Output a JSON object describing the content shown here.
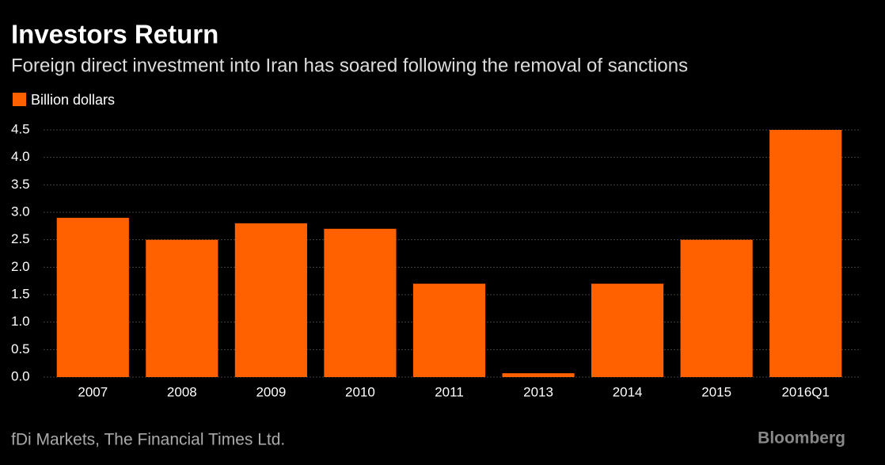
{
  "chart_data": {
    "type": "bar",
    "title": "Investors Return",
    "subtitle": "Foreign direct investment into Iran has soared following the removal of sanctions",
    "categories": [
      "2007",
      "2008",
      "2009",
      "2010",
      "2011",
      "2013",
      "2014",
      "2015",
      "2016Q1"
    ],
    "series": [
      {
        "name": "Billion dollars",
        "color": "#ff6000",
        "values": [
          2.9,
          2.5,
          2.8,
          2.7,
          1.7,
          0.07,
          1.7,
          2.5,
          4.5
        ]
      }
    ],
    "ylim": [
      0,
      4.5
    ],
    "yticks": [
      {
        "value": 0,
        "label": "0.0"
      },
      0.5,
      {
        "value": 1,
        "label": "1.0"
      },
      1.5,
      {
        "value": 2,
        "label": "2.0"
      },
      2.5,
      {
        "value": 3,
        "label": "3.0"
      },
      3.5,
      {
        "value": 4,
        "label": "4.0"
      },
      4.5
    ],
    "grid": true,
    "source": "fDi Markets, The Financial Times Ltd.",
    "brand": "Bloomberg"
  }
}
